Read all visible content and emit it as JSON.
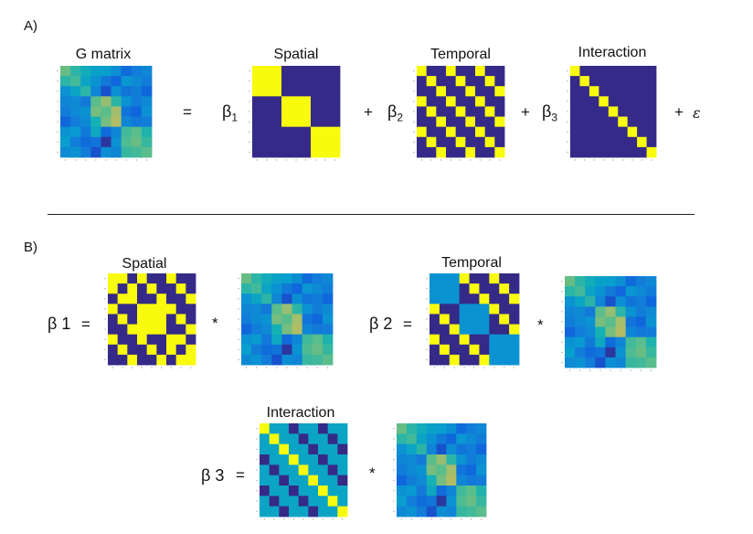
{
  "panel_a": {
    "label": "A)",
    "titles": {
      "g": "G matrix",
      "spatial": "Spatial",
      "temporal": "Temporal",
      "interaction": "Interaction"
    },
    "equals": "=",
    "plus": "+",
    "beta": "β",
    "subs": [
      "1",
      "2",
      "3"
    ],
    "epsilon": "ε"
  },
  "panel_b": {
    "label": "B)",
    "titles": {
      "spatial": "Spatial",
      "temporal": "Temporal",
      "interaction": "Interaction"
    },
    "eq_lhs": [
      "β 1",
      "β 2",
      "β 3"
    ],
    "equals": "=",
    "times": "*"
  },
  "colors": {
    "dark": "#2e2c8c",
    "yellow": "#f8f30c",
    "teal": "#22b9a8",
    "cyan": "#15a7d6"
  },
  "matrices": {
    "g": [
      [
        0.72,
        0.62,
        0.55,
        0.48,
        0.46,
        0.38,
        0.22,
        0.3,
        0.35
      ],
      [
        0.62,
        0.66,
        0.5,
        0.4,
        0.28,
        0.2,
        0.42,
        0.36,
        0.3
      ],
      [
        0.4,
        0.5,
        0.62,
        0.34,
        0.12,
        0.38,
        0.26,
        0.3,
        0.2
      ],
      [
        0.34,
        0.36,
        0.28,
        0.7,
        0.78,
        0.62,
        0.4,
        0.3,
        0.36
      ],
      [
        0.3,
        0.36,
        0.4,
        0.74,
        0.7,
        0.8,
        0.26,
        0.2,
        0.4
      ],
      [
        0.2,
        0.3,
        0.36,
        0.58,
        0.74,
        0.82,
        0.34,
        0.28,
        0.3
      ],
      [
        0.4,
        0.44,
        0.28,
        0.52,
        0.22,
        0.34,
        0.66,
        0.7,
        0.6
      ],
      [
        0.46,
        0.3,
        0.22,
        0.26,
        0.04,
        0.4,
        0.68,
        0.72,
        0.64
      ],
      [
        0.36,
        0.4,
        0.3,
        0.12,
        0.38,
        0.34,
        0.64,
        0.66,
        0.7
      ]
    ],
    "spatial": [
      [
        1,
        1,
        1,
        0,
        0,
        0,
        0,
        0,
        0
      ],
      [
        1,
        1,
        1,
        0,
        0,
        0,
        0,
        0,
        0
      ],
      [
        1,
        1,
        1,
        0,
        0,
        0,
        0,
        0,
        0
      ],
      [
        0,
        0,
        0,
        1,
        1,
        1,
        0,
        0,
        0
      ],
      [
        0,
        0,
        0,
        1,
        1,
        1,
        0,
        0,
        0
      ],
      [
        0,
        0,
        0,
        1,
        1,
        1,
        0,
        0,
        0
      ],
      [
        0,
        0,
        0,
        0,
        0,
        0,
        1,
        1,
        1
      ],
      [
        0,
        0,
        0,
        0,
        0,
        0,
        1,
        1,
        1
      ],
      [
        0,
        0,
        0,
        0,
        0,
        0,
        1,
        1,
        1
      ]
    ],
    "temporal": [
      [
        1,
        0,
        0,
        1,
        0,
        0,
        1,
        0,
        0
      ],
      [
        0,
        1,
        0,
        0,
        1,
        0,
        0,
        1,
        0
      ],
      [
        0,
        0,
        1,
        0,
        0,
        1,
        0,
        0,
        1
      ],
      [
        1,
        0,
        0,
        1,
        0,
        0,
        1,
        0,
        0
      ],
      [
        0,
        1,
        0,
        0,
        1,
        0,
        0,
        1,
        0
      ],
      [
        0,
        0,
        1,
        0,
        0,
        1,
        0,
        0,
        1
      ],
      [
        1,
        0,
        0,
        1,
        0,
        0,
        1,
        0,
        0
      ],
      [
        0,
        1,
        0,
        0,
        1,
        0,
        0,
        1,
        0
      ],
      [
        0,
        0,
        1,
        0,
        0,
        1,
        0,
        0,
        1
      ]
    ],
    "interaction": [
      [
        1,
        0,
        0,
        0,
        0,
        0,
        0,
        0,
        0
      ],
      [
        0,
        1,
        0,
        0,
        0,
        0,
        0,
        0,
        0
      ],
      [
        0,
        0,
        1,
        0,
        0,
        0,
        0,
        0,
        0
      ],
      [
        0,
        0,
        0,
        1,
        0,
        0,
        0,
        0,
        0
      ],
      [
        0,
        0,
        0,
        0,
        1,
        0,
        0,
        0,
        0
      ],
      [
        0,
        0,
        0,
        0,
        0,
        1,
        0,
        0,
        0
      ],
      [
        0,
        0,
        0,
        0,
        0,
        0,
        1,
        0,
        0
      ],
      [
        0,
        0,
        0,
        0,
        0,
        0,
        0,
        1,
        0
      ],
      [
        0,
        0,
        0,
        0,
        0,
        0,
        0,
        0,
        1
      ]
    ],
    "b_spatial": [
      [
        1,
        1,
        0,
        1,
        0,
        0,
        1,
        0,
        0
      ],
      [
        1,
        0,
        1,
        0,
        1,
        0,
        0,
        1,
        0
      ],
      [
        0,
        1,
        1,
        0,
        0,
        1,
        0,
        0,
        1
      ],
      [
        1,
        0,
        0,
        1,
        1,
        1,
        1,
        0,
        0
      ],
      [
        0,
        1,
        0,
        1,
        1,
        1,
        0,
        1,
        0
      ],
      [
        0,
        0,
        1,
        1,
        1,
        1,
        0,
        0,
        1
      ],
      [
        1,
        0,
        0,
        1,
        0,
        0,
        1,
        1,
        0
      ],
      [
        0,
        1,
        0,
        0,
        1,
        0,
        1,
        0,
        1
      ],
      [
        0,
        0,
        1,
        0,
        0,
        1,
        0,
        1,
        1
      ]
    ],
    "b_temporal": [
      [
        0.4,
        0.4,
        0.4,
        1,
        0,
        0,
        1,
        0,
        0
      ],
      [
        0.4,
        0.4,
        0.4,
        0,
        1,
        0,
        0,
        1,
        0
      ],
      [
        0.4,
        0.4,
        0.4,
        0,
        0,
        1,
        0,
        0,
        1
      ],
      [
        1,
        0,
        0,
        0.4,
        0.4,
        0.4,
        1,
        0,
        0
      ],
      [
        0,
        1,
        0,
        0.4,
        0.4,
        0.4,
        0,
        1,
        0
      ],
      [
        0,
        0,
        1,
        0.4,
        0.4,
        0.4,
        0,
        0,
        1
      ],
      [
        1,
        0,
        0,
        1,
        0,
        0,
        0.4,
        0.4,
        0.4
      ],
      [
        0,
        1,
        0,
        0,
        1,
        0,
        0.4,
        0.4,
        0.4
      ],
      [
        0,
        0,
        1,
        0,
        0,
        1,
        0.4,
        0.4,
        0.4
      ]
    ],
    "b_interaction": [
      [
        1,
        0.5,
        0.5,
        0,
        0.5,
        0.5,
        0,
        0.5,
        0.5
      ],
      [
        0.5,
        1,
        0.5,
        0.5,
        0,
        0.5,
        0.5,
        0,
        0.5
      ],
      [
        0.5,
        0.5,
        1,
        0.5,
        0.5,
        0,
        0.5,
        0.5,
        0
      ],
      [
        0,
        0.5,
        0.5,
        1,
        0.5,
        0.5,
        0,
        0.5,
        0.5
      ],
      [
        0.5,
        0,
        0.5,
        0.5,
        1,
        0.5,
        0.5,
        0,
        0.5
      ],
      [
        0.5,
        0.5,
        0,
        0.5,
        0.5,
        1,
        0.5,
        0.5,
        0
      ],
      [
        0,
        0.5,
        0.5,
        0,
        0.5,
        0.5,
        1,
        0.5,
        0.5
      ],
      [
        0.5,
        0,
        0.5,
        0.5,
        0,
        0.5,
        0.5,
        1,
        0.5
      ],
      [
        0.5,
        0.5,
        0,
        0.5,
        0.5,
        0,
        0.5,
        0.5,
        1
      ]
    ]
  }
}
